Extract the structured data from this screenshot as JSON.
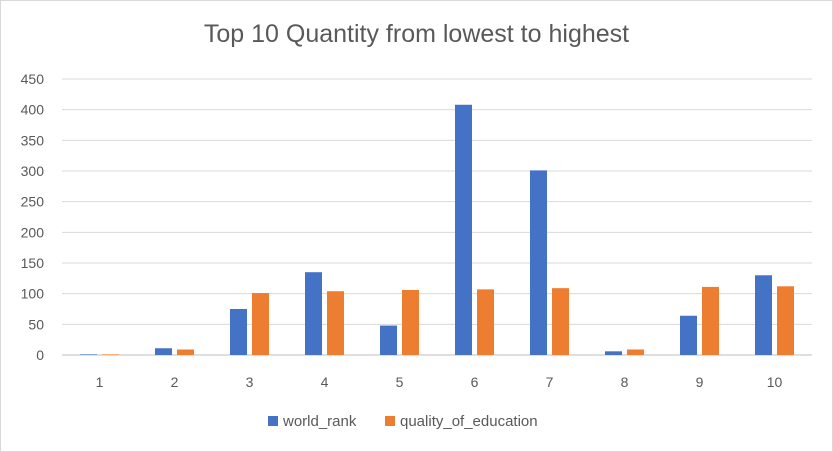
{
  "chart_data": {
    "type": "bar",
    "title": "Top 10 Quantity from lowest to highest",
    "xlabel": "",
    "ylabel": "",
    "categories": [
      "1",
      "2",
      "3",
      "4",
      "5",
      "6",
      "7",
      "8",
      "9",
      "10"
    ],
    "series": [
      {
        "name": "world_rank",
        "color": "#4472c4",
        "values": [
          1,
          11,
          75,
          135,
          48,
          408,
          301,
          6,
          64,
          130
        ]
      },
      {
        "name": "quality_of_education",
        "color": "#ed7d31",
        "values": [
          1,
          9,
          101,
          104,
          106,
          107,
          109,
          9,
          111,
          112
        ]
      }
    ],
    "ylim": [
      0,
      450
    ],
    "yticks": [
      "0",
      "50",
      "100",
      "150",
      "200",
      "250",
      "300",
      "350",
      "400",
      "450"
    ],
    "grid": true,
    "legend": "bottom"
  }
}
